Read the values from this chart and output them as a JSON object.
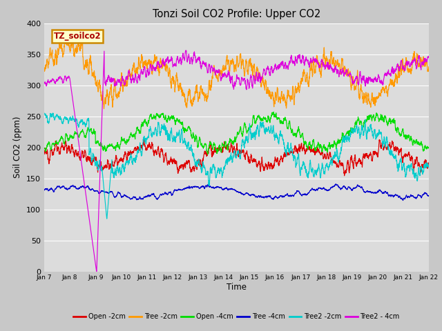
{
  "title": "Tonzi Soil CO2 Profile: Upper CO2",
  "ylabel": "Soil CO2 (ppm)",
  "xlabel": "Time",
  "legend_label": "TZ_soilco2",
  "ylim": [
    0,
    400
  ],
  "yticks": [
    0,
    50,
    100,
    150,
    200,
    250,
    300,
    350,
    400
  ],
  "xtick_labels": [
    "Jan 7",
    "Jan 8",
    "Jan 9",
    "Jan 10",
    "Jan 11",
    "Jan 12",
    "Jan 13",
    "Jan 14",
    "Jan 15",
    "Jan 16",
    "Jan 17",
    "Jan 18",
    "Jan 19",
    "Jan 20",
    "Jan 21",
    "Jan 22"
  ],
  "series": [
    {
      "name": "Open -2cm",
      "color": "#dd0000"
    },
    {
      "name": "Tree -2cm",
      "color": "#ff9900"
    },
    {
      "name": "Open -4cm",
      "color": "#00dd00"
    },
    {
      "name": "Tree -4cm",
      "color": "#0000cc"
    },
    {
      "name": "Tree2 -2cm",
      "color": "#00cccc"
    },
    {
      "name": "Tree2 - 4cm",
      "color": "#dd00dd"
    }
  ],
  "background_color": "#dcdcdc",
  "grid_color": "#ffffff",
  "fig_bg": "#c8c8c8"
}
